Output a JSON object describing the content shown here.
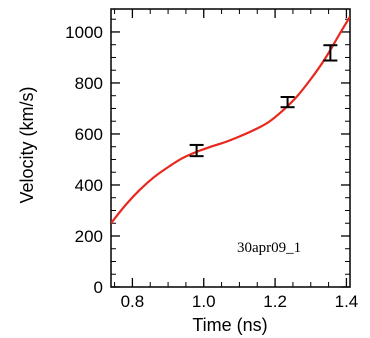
{
  "chart_data": {
    "type": "line",
    "title": "",
    "xlabel": "Time (ns)",
    "ylabel": "Velocity (km/s)",
    "xlim": [
      0.74,
      1.41
    ],
    "ylim": [
      0,
      1090
    ],
    "x_ticks": [
      0.8,
      1.0,
      1.2,
      1.4
    ],
    "x_tick_labels": [
      "0.8",
      "1.0",
      "1.2",
      "1.4"
    ],
    "y_ticks": [
      0,
      200,
      400,
      600,
      800,
      1000
    ],
    "y_tick_labels": [
      "0",
      "200",
      "400",
      "600",
      "800",
      "1000"
    ],
    "grid": false,
    "legend": "none",
    "annotation": "30apr09_1",
    "series": [
      {
        "kind": "fit-curve",
        "color": "#e8281e",
        "x": [
          0.74,
          0.78,
          0.82,
          0.86,
          0.9,
          0.94,
          0.98,
          1.02,
          1.06,
          1.1,
          1.14,
          1.18,
          1.22,
          1.26,
          1.3,
          1.34,
          1.38,
          1.41
        ],
        "y": [
          250,
          320,
          380,
          430,
          470,
          505,
          530,
          550,
          568,
          590,
          615,
          645,
          690,
          745,
          815,
          895,
          990,
          1060
        ]
      },
      {
        "kind": "measurements",
        "color": "#000000",
        "x": [
          0.98,
          1.235,
          1.355
        ],
        "y": [
          535,
          725,
          918
        ],
        "yerr": [
          22,
          20,
          30
        ]
      }
    ]
  }
}
